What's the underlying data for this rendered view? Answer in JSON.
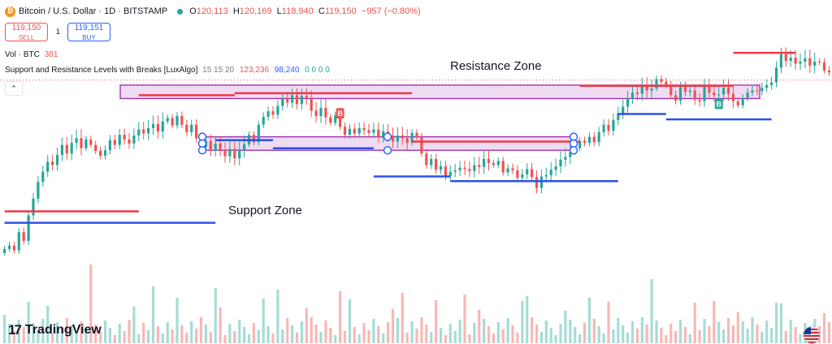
{
  "header": {
    "coin_icon": "bitcoin-icon",
    "coin_glyph": "₿",
    "title": "Bitcoin / U.S. Dollar · 1D · BITSTAMP",
    "status_color": "#26a69a",
    "ohlc": {
      "o_label": "O",
      "o": "120,113",
      "h_label": "H",
      "h": "120,169",
      "l_label": "L",
      "l": "118,940",
      "c_label": "C",
      "c": "119,150",
      "change": "−957 (−0.80%)"
    }
  },
  "trade": {
    "sell_price": "119,150",
    "sell_label": "SELL",
    "spread": "1",
    "buy_price": "119,151",
    "buy_label": "BUY"
  },
  "volume_legend": {
    "label": "Vol · BTC",
    "value": "381"
  },
  "indicator": {
    "name": "Support and Resistance Levels with Breaks [LuxAlgo]",
    "params": "15 15 20",
    "resistance_value": "123,236",
    "support_value": "98,240",
    "zeros": "0 0 0 0"
  },
  "collapse_icon": "chevron-up-icon",
  "collapse_glyph": "⌃",
  "watermark": {
    "text": "TradingView",
    "mark": "17",
    "icon": "tradingview-logo-icon"
  },
  "flag_icon": "us-flag-icon",
  "colors": {
    "up": "#26a69a",
    "down": "#ef5350",
    "resistance": "#f23645",
    "support": "#2e50e6",
    "zone_fill": "#e1bee7",
    "zone_border": "#9c27b0"
  },
  "chart_data": {
    "type": "candlestick",
    "symbol": "BTCUSD",
    "exchange": "BITSTAMP",
    "interval": "1D",
    "series": [
      {
        "name": "Bitcoin / U.S. Dollar",
        "close": [
          94000,
          94500,
          93800,
          96500,
          95200,
          99000,
          101500,
          104000,
          105500,
          107000,
          106500,
          108000,
          109500,
          108200,
          109800,
          110500,
          109000,
          110300,
          109500,
          108600,
          107900,
          108700,
          110200,
          109500,
          111000,
          110300,
          109700,
          110900,
          111800,
          111200,
          112000,
          112600,
          111500,
          113000,
          113500,
          112400,
          113800,
          112500,
          111400,
          112500,
          110500,
          109200,
          110100,
          108600,
          109700,
          108700,
          107800,
          108900,
          107500,
          108700,
          109600,
          111000,
          109900,
          112500,
          113700,
          114500,
          114000,
          115300,
          116400,
          115800,
          116900,
          115600,
          116800,
          116400,
          114600,
          113800,
          115000,
          113600,
          112800,
          113900,
          112200,
          111000,
          111900,
          111200,
          112000,
          111700,
          111300,
          111800,
          110700,
          111500,
          110900,
          110000,
          110900,
          110500,
          109800,
          111300,
          110700,
          108200,
          106500,
          107400,
          105800,
          106300,
          104900,
          105500,
          105700,
          106100,
          105900,
          105600,
          106500,
          106200,
          107400,
          106800,
          106500,
          107100,
          105400,
          106000,
          105700,
          104600,
          105100,
          105900,
          104700,
          103100,
          104800,
          105000,
          105800,
          106300,
          107300,
          107700,
          108400,
          109000,
          110100,
          109800,
          110700,
          109900,
          111400,
          112500,
          111600,
          113200,
          114200,
          115200,
          116500,
          117300,
          117100,
          118300,
          117600,
          117900,
          119300,
          118900,
          118400,
          116900,
          116100,
          118100,
          117400,
          117600,
          116200,
          116000,
          118300,
          117300,
          116900,
          117000,
          118000,
          117100,
          116000,
          115400,
          116500,
          117300,
          117600,
          117500,
          118000,
          118400,
          118800,
          121000,
          123000,
          122000,
          122500,
          121600,
          121900,
          122400,
          121300,
          121900,
          121800,
          120600,
          120300,
          119800,
          119500,
          120700,
          121600,
          122500,
          121800,
          119150
        ]
      }
    ],
    "y_scale_hint": [
      90000,
      126000
    ],
    "zones": [
      {
        "label": "Resistance Zone",
        "range": [
          116400,
          118400
        ]
      },
      {
        "label": "Support Zone",
        "range": [
          108700,
          110700
        ]
      }
    ],
    "resistance_levels": [
      {
        "from": 0,
        "to": 28,
        "value": 99600
      },
      {
        "from": 28,
        "to": 48,
        "value": 116900
      },
      {
        "from": 48,
        "to": 85,
        "value": 117200
      },
      {
        "from": 85,
        "to": 120,
        "value": 110000
      },
      {
        "from": 120,
        "to": 152,
        "value": 118300
      },
      {
        "from": 152,
        "to": 165,
        "value": 123200
      }
    ],
    "support_levels": [
      {
        "from": 0,
        "to": 44,
        "value": 97900
      },
      {
        "from": 44,
        "to": 56,
        "value": 110200
      },
      {
        "from": 56,
        "to": 77,
        "value": 109000
      },
      {
        "from": 77,
        "to": 93,
        "value": 104800
      },
      {
        "from": 93,
        "to": 128,
        "value": 104100
      },
      {
        "from": 128,
        "to": 138,
        "value": 114100
      },
      {
        "from": 138,
        "to": 160,
        "value": 113300
      }
    ],
    "break_labels": [
      {
        "label": "B",
        "bar": 70,
        "color": "#ef5350"
      },
      {
        "label": "B",
        "bar": 149,
        "color": "#26a69a"
      }
    ]
  }
}
